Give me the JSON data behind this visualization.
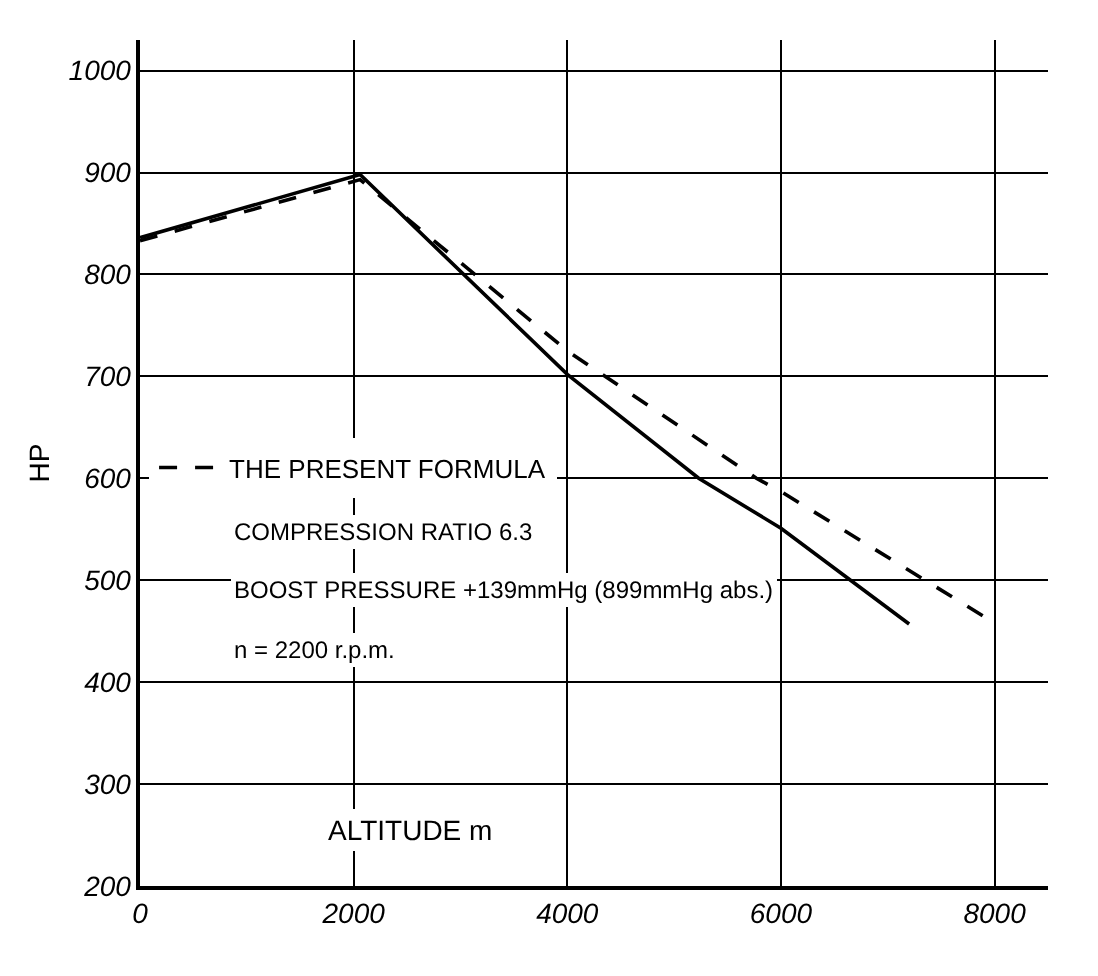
{
  "chart_data": {
    "type": "line",
    "xlabel": "ALTITUDE m",
    "ylabel": "HP",
    "series": [
      {
        "name": "THE PRESENT FORMULA",
        "color": "#000000",
        "line_style": "dashed",
        "x": [
          0,
          2060,
          4000,
          5770,
          6000,
          8000
        ],
        "values": [
          833,
          893,
          725,
          600,
          587,
          458
        ]
      },
      {
        "color": "#000000",
        "line_style": "solid",
        "x": [
          0,
          2060,
          4000,
          5230,
          6000,
          7200
        ],
        "values": [
          836,
          898,
          702,
          600,
          551,
          457
        ]
      }
    ],
    "xlim": [
      0,
      8500
    ],
    "xticks": [
      0,
      2000,
      4000,
      6000,
      8000
    ],
    "ylim": [
      200,
      1030
    ],
    "yticks": [
      200,
      300,
      400,
      500,
      600,
      700,
      800,
      900,
      1000
    ],
    "annotations": [
      "COMPRESSION RATIO 6.3",
      "BOOST PRESSURE +139mmHg (899mmHg abs.)",
      "n = 2200 r.p.m."
    ],
    "grid": true,
    "legend": "left",
    "marker": "none"
  }
}
